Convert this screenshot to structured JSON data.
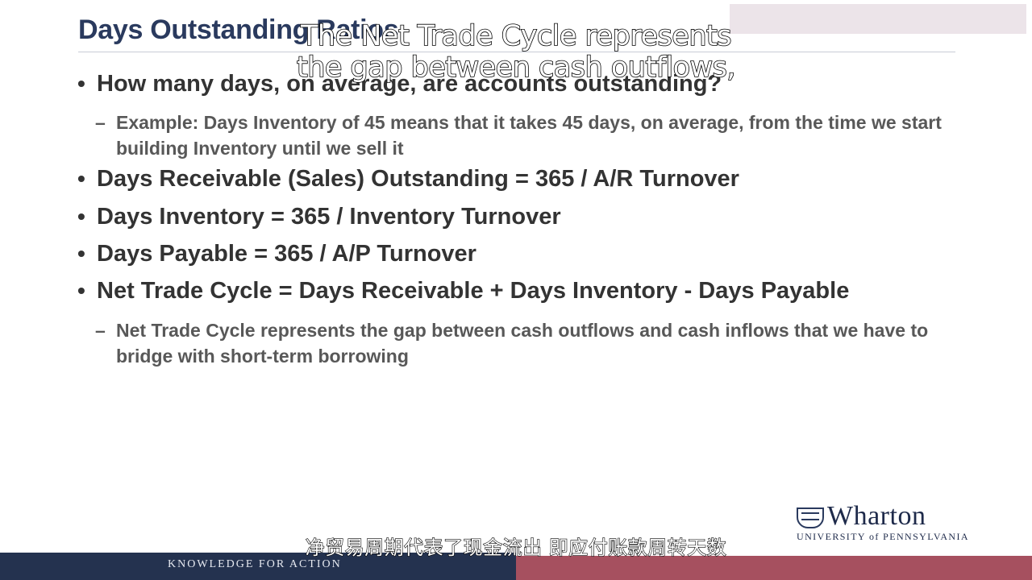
{
  "slide": {
    "title": "Days Outstanding Ratios",
    "bullets": [
      {
        "text": "How many days, on average, are accounts outstanding?"
      },
      {
        "text": "Days Receivable (Sales) Outstanding = 365 / A/R Turnover"
      },
      {
        "text": "Days Inventory = 365 / Inventory Turnover"
      },
      {
        "text": "Days Payable = 365 / A/P Turnover"
      },
      {
        "text": "Net Trade Cycle = Days Receivable + Days Inventory - Days Payable"
      }
    ],
    "sub_bullets": [
      {
        "text": "Example: Days Inventory of 45 means that it takes 45 days, on average, from the time we start building Inventory until we sell it"
      },
      {
        "text": "Net Trade Cycle represents the gap between cash outflows and cash inflows that we have to bridge with short-term borrowing"
      }
    ],
    "bullet_marker": "•",
    "sub_marker": "–"
  },
  "captions": {
    "overlay_line1": "The Net Trade Cycle represents",
    "overlay_line2": "the gap between cash outflows,",
    "chinese": "净贸易周期代表了现金流出 即应付账款周转天数"
  },
  "branding": {
    "logo_name": "Wharton",
    "logo_sub": "UNIVERSITY of PENNSYLVANIA",
    "footer_tagline": "KNOWLEDGE FOR ACTION",
    "logo_icon": "shield-icon"
  },
  "colors": {
    "title": "#2a3a5e",
    "footer_navy": "#24324f",
    "footer_red": "#a6505f"
  }
}
